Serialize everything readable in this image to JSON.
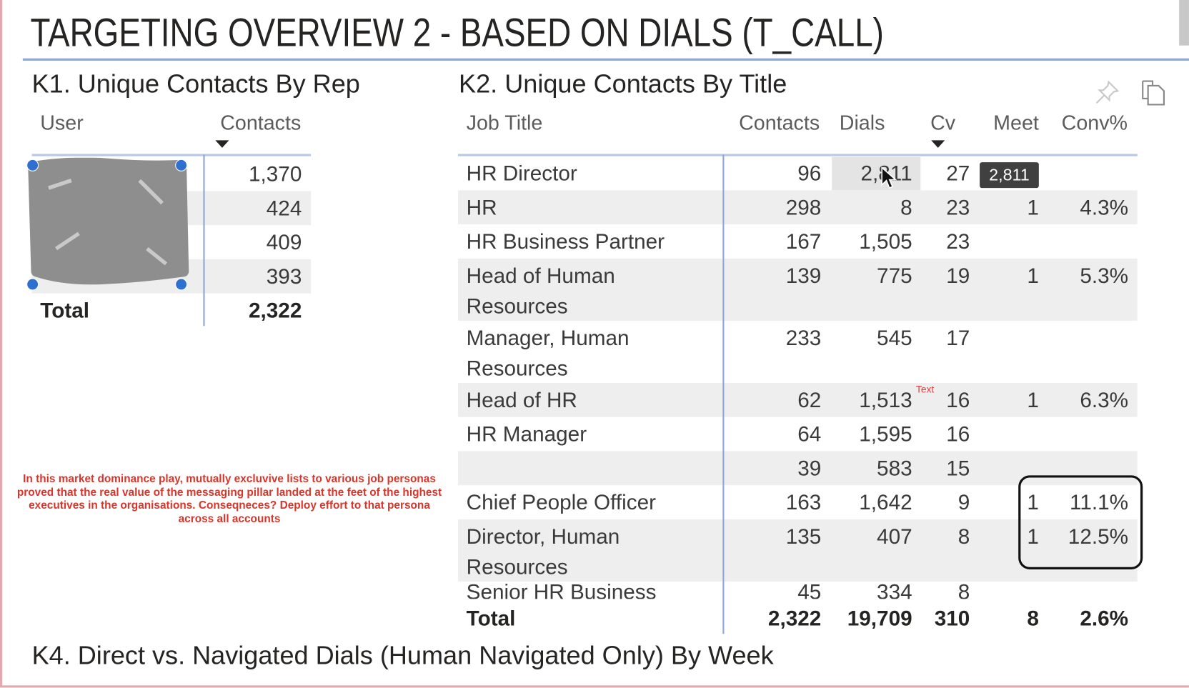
{
  "page": {
    "title": "TARGETING OVERVIEW 2 - BASED ON DIALS (T_CALL)"
  },
  "k1": {
    "heading": "K1. Unique Contacts By Rep",
    "columns": [
      "User",
      "Contacts"
    ],
    "sorted_column": "Contacts",
    "rows": [
      {
        "user": "",
        "contacts": "1,370"
      },
      {
        "user": "",
        "contacts": "424"
      },
      {
        "user": "",
        "contacts": "409"
      },
      {
        "user": "",
        "contacts": "393"
      }
    ],
    "total": {
      "label": "Total",
      "contacts": "2,322"
    },
    "redaction_note": "User names obscured by gray scribble"
  },
  "k2": {
    "heading": "K2. Unique Contacts By Title",
    "columns": [
      "Job Title",
      "Contacts",
      "Dials",
      "Cv",
      "Meet",
      "Conv%"
    ],
    "sorted_column": "Cv",
    "icons": [
      "pin-icon",
      "copy-icon"
    ],
    "rows": [
      {
        "title": [
          "HR Director"
        ],
        "contacts": "96",
        "dials": "2,811",
        "cv": "27",
        "meet": "",
        "conv": ""
      },
      {
        "title": [
          "HR"
        ],
        "contacts": "298",
        "dials": "8",
        "cv": "23",
        "meet": "1",
        "conv": "4.3%"
      },
      {
        "title": [
          "HR Business Partner"
        ],
        "contacts": "167",
        "dials": "1,505",
        "cv": "23",
        "meet": "",
        "conv": ""
      },
      {
        "title": [
          "Head of Human",
          "Resources"
        ],
        "contacts": "139",
        "dials": "775",
        "cv": "19",
        "meet": "1",
        "conv": "5.3%"
      },
      {
        "title": [
          "Manager, Human",
          "Resources"
        ],
        "contacts": "233",
        "dials": "545",
        "cv": "17",
        "meet": "",
        "conv": ""
      },
      {
        "title": [
          "Head of HR"
        ],
        "contacts": "62",
        "dials": "1,513",
        "cv": "16",
        "meet": "1",
        "conv": "6.3%"
      },
      {
        "title": [
          "HR Manager"
        ],
        "contacts": "64",
        "dials": "1,595",
        "cv": "16",
        "meet": "",
        "conv": ""
      },
      {
        "title": [
          ""
        ],
        "contacts": "39",
        "dials": "583",
        "cv": "15",
        "meet": "",
        "conv": ""
      },
      {
        "title": [
          "Chief People Officer"
        ],
        "contacts": "163",
        "dials": "1,642",
        "cv": "9",
        "meet": "1",
        "conv": "11.1%"
      },
      {
        "title": [
          "Director, Human",
          "Resources"
        ],
        "contacts": "135",
        "dials": "407",
        "cv": "8",
        "meet": "1",
        "conv": "12.5%"
      },
      {
        "title": [
          "Senior HR Business"
        ],
        "contacts": "45",
        "dials": "334",
        "cv": "8",
        "meet": "",
        "conv": ""
      }
    ],
    "total": {
      "label": "Total",
      "contacts": "2,322",
      "dials": "19,709",
      "cv": "310",
      "meet": "8",
      "conv": "2.6%"
    },
    "tooltip": "2,811",
    "text_mark": "Text"
  },
  "annotation": {
    "note": "In this market dominance play, mutually excluvive lists to various job personas proved that the real value of the messaging pillar landed at the feet of the highest executives in the organisations. Conseqneces? Deploy effort to that persona across all accounts",
    "color": "#d9352a"
  },
  "k4": {
    "heading": "K4. Direct vs. Navigated Dials (Human Navigated Only) By Week"
  }
}
